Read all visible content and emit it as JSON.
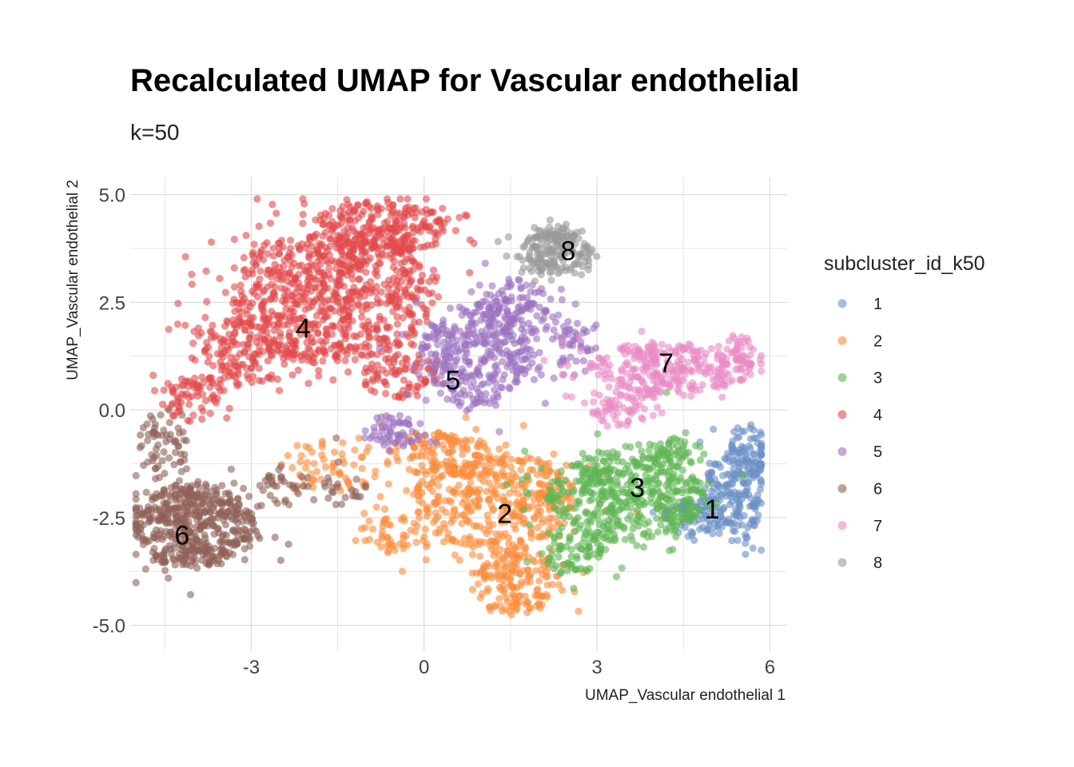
{
  "chart_data": {
    "type": "scatter",
    "title": "Recalculated UMAP for Vascular endothelial",
    "subtitle": "k=50",
    "xlabel": "UMAP_Vascular endothelial 1",
    "ylabel": "UMAP_Vascular endothelial 2",
    "xlim": [
      -5.1,
      6.3
    ],
    "ylim": [
      -5.6,
      5.4
    ],
    "x_ticks": [
      -3,
      0,
      3,
      6
    ],
    "x_tick_labels": [
      "-3",
      "0",
      "3",
      "6"
    ],
    "y_ticks": [
      5.0,
      2.5,
      0.0,
      -2.5,
      -5.0
    ],
    "y_tick_labels": [
      "5.0",
      "2.5",
      "0.0",
      "-2.5",
      "-5.0"
    ],
    "grid": true,
    "point_opacity": 0.6,
    "legend": {
      "title": "subcluster_id_k50",
      "placement": "right",
      "entries": [
        "1",
        "2",
        "3",
        "4",
        "5",
        "6",
        "7",
        "8"
      ]
    },
    "colors": {
      "1": "#6A8FC7",
      "2": "#FB8C3A",
      "3": "#5DB552",
      "4": "#E24A4B",
      "5": "#9B72C0",
      "6": "#8F6056",
      "7": "#E98BC4",
      "8": "#999999"
    },
    "series": [
      {
        "name": "1",
        "label_position": [
          5.0,
          -2.3
        ],
        "regions": [
          {
            "cx": 5.4,
            "cy": -2.0,
            "rx": 0.55,
            "ry": 1.05,
            "n": 170
          },
          {
            "cx": 5.6,
            "cy": -1.0,
            "rx": 0.35,
            "ry": 0.7,
            "n": 80
          },
          {
            "cx": 4.6,
            "cy": -2.5,
            "rx": 0.45,
            "ry": 0.45,
            "n": 70
          }
        ]
      },
      {
        "name": "2",
        "label_position": [
          1.4,
          -2.4
        ],
        "regions": [
          {
            "cx": 1.2,
            "cy": -2.1,
            "rx": 1.4,
            "ry": 1.15,
            "n": 420
          },
          {
            "cx": 1.6,
            "cy": -4.0,
            "rx": 0.75,
            "ry": 0.85,
            "n": 170
          },
          {
            "cx": 0.3,
            "cy": -1.0,
            "rx": 0.9,
            "ry": 0.55,
            "n": 120
          },
          {
            "cx": -1.5,
            "cy": -1.3,
            "rx": 0.9,
            "ry": 0.6,
            "n": 60
          },
          {
            "cx": -0.6,
            "cy": -2.9,
            "rx": 0.7,
            "ry": 0.45,
            "n": 50
          }
        ]
      },
      {
        "name": "3",
        "label_position": [
          3.7,
          -1.8
        ],
        "regions": [
          {
            "cx": 3.5,
            "cy": -2.0,
            "rx": 1.35,
            "ry": 1.05,
            "n": 470
          },
          {
            "cx": 2.5,
            "cy": -3.3,
            "rx": 0.6,
            "ry": 0.55,
            "n": 70
          },
          {
            "cx": 4.3,
            "cy": -1.0,
            "rx": 0.6,
            "ry": 0.35,
            "n": 60
          }
        ]
      },
      {
        "name": "4",
        "label_position": [
          -2.1,
          1.9
        ],
        "regions": [
          {
            "cx": -1.6,
            "cy": 2.6,
            "rx": 1.75,
            "ry": 1.55,
            "n": 780
          },
          {
            "cx": -0.8,
            "cy": 4.2,
            "rx": 1.2,
            "ry": 0.65,
            "n": 260
          },
          {
            "cx": -3.2,
            "cy": 1.3,
            "rx": 0.85,
            "ry": 0.85,
            "n": 150
          },
          {
            "cx": -4.0,
            "cy": 0.3,
            "rx": 0.55,
            "ry": 0.6,
            "n": 70
          },
          {
            "cx": -0.4,
            "cy": 0.8,
            "rx": 0.7,
            "ry": 0.55,
            "n": 80
          }
        ]
      },
      {
        "name": "5",
        "label_position": [
          0.5,
          0.7
        ],
        "regions": [
          {
            "cx": 0.9,
            "cy": 1.3,
            "rx": 0.95,
            "ry": 1.2,
            "n": 330
          },
          {
            "cx": 1.6,
            "cy": 2.4,
            "rx": 0.6,
            "ry": 0.7,
            "n": 110
          },
          {
            "cx": -0.5,
            "cy": -0.5,
            "rx": 0.55,
            "ry": 0.4,
            "n": 60
          },
          {
            "cx": 2.4,
            "cy": 1.4,
            "rx": 0.6,
            "ry": 0.7,
            "n": 60
          }
        ]
      },
      {
        "name": "6",
        "label_position": [
          -4.2,
          -2.9
        ],
        "regions": [
          {
            "cx": -4.0,
            "cy": -2.7,
            "rx": 1.05,
            "ry": 1.0,
            "n": 520
          },
          {
            "cx": -4.5,
            "cy": -0.8,
            "rx": 0.45,
            "ry": 0.7,
            "n": 60
          },
          {
            "cx": -2.1,
            "cy": -1.8,
            "rx": 1.1,
            "ry": 0.5,
            "n": 60
          }
        ]
      },
      {
        "name": "7",
        "label_position": [
          4.2,
          1.1
        ],
        "regions": [
          {
            "cx": 4.3,
            "cy": 1.0,
            "rx": 1.45,
            "ry": 0.6,
            "n": 300
          },
          {
            "cx": 3.4,
            "cy": 0.1,
            "rx": 0.7,
            "ry": 0.5,
            "n": 70
          },
          {
            "cx": 5.5,
            "cy": 1.4,
            "rx": 0.2,
            "ry": 0.3,
            "n": 25
          }
        ]
      },
      {
        "name": "8",
        "label_position": [
          2.5,
          3.7
        ],
        "regions": [
          {
            "cx": 2.3,
            "cy": 3.6,
            "rx": 0.7,
            "ry": 0.5,
            "n": 150
          },
          {
            "cx": 2.3,
            "cy": 4.1,
            "rx": 0.4,
            "ry": 0.2,
            "n": 40
          }
        ]
      }
    ]
  }
}
